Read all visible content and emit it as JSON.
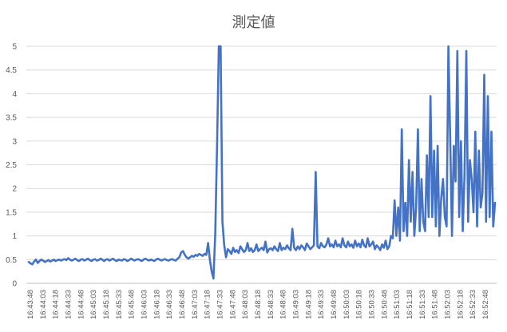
{
  "chart_data": {
    "type": "line",
    "title": "測定値",
    "xlabel": "",
    "ylabel": "",
    "ylim": [
      0,
      5
    ],
    "yticks": [
      "0",
      "0.5",
      "1",
      "1.5",
      "2",
      "2.5",
      "3",
      "3.5",
      "4",
      "4.5",
      "5"
    ],
    "xtick_labels": [
      "16:43:48",
      "16:44:03",
      "16:44:18",
      "16:44:33",
      "16:44:48",
      "16:45:03",
      "16:45:18",
      "16:45:33",
      "16:45:48",
      "16:46:03",
      "16:46:18",
      "16:46:33",
      "16:46:48",
      "16:47:03",
      "16:47:18",
      "16:47:33",
      "16:47:48",
      "16:48:03",
      "16:48:18",
      "16:48:33",
      "16:48:48",
      "16:49:03",
      "16:49:18",
      "16:49:33",
      "16:49:48",
      "16:50:03",
      "16:50:18",
      "16:50:33",
      "16:50:48",
      "16:51:03",
      "16:51:18",
      "16:51:33",
      "16:51:48",
      "16:52:03",
      "16:52:18",
      "16:52:33",
      "16:52:48"
    ],
    "grid": true,
    "legend": "none",
    "color": "#4472C4",
    "series": [
      {
        "values": [
          0.45,
          0.42,
          0.4,
          0.46,
          0.5,
          0.43,
          0.47,
          0.5,
          0.48,
          0.45,
          0.47,
          0.49,
          0.46,
          0.48,
          0.5,
          0.47,
          0.49,
          0.5,
          0.48,
          0.5,
          0.51,
          0.49,
          0.53,
          0.5,
          0.48,
          0.5,
          0.52,
          0.49,
          0.47,
          0.5,
          0.51,
          0.48,
          0.5,
          0.52,
          0.49,
          0.47,
          0.5,
          0.51,
          0.48,
          0.49,
          0.52,
          0.5,
          0.47,
          0.5,
          0.51,
          0.48,
          0.5,
          0.52,
          0.49,
          0.47,
          0.5,
          0.49,
          0.48,
          0.51,
          0.5,
          0.47,
          0.49,
          0.52,
          0.5,
          0.48,
          0.5,
          0.51,
          0.49,
          0.47,
          0.5,
          0.52,
          0.5,
          0.48,
          0.5,
          0.49,
          0.47,
          0.5,
          0.52,
          0.5,
          0.48,
          0.5,
          0.51,
          0.49,
          0.48,
          0.5,
          0.51,
          0.49,
          0.48,
          0.52,
          0.55,
          0.65,
          0.68,
          0.6,
          0.55,
          0.52,
          0.55,
          0.58,
          0.56,
          0.6,
          0.58,
          0.62,
          0.6,
          0.58,
          0.62,
          0.6,
          0.85,
          0.5,
          0.25,
          0.1,
          1.05,
          2.9,
          5.0,
          5.0,
          1.3,
          0.8,
          0.55,
          0.72,
          0.68,
          0.62,
          0.75,
          0.66,
          0.7,
          0.64,
          0.78,
          0.72,
          0.66,
          0.7,
          0.85,
          0.68,
          0.74,
          0.66,
          0.7,
          0.82,
          0.68,
          0.72,
          0.75,
          0.7,
          0.88,
          0.65,
          0.72,
          0.74,
          0.7,
          0.78,
          0.72,
          0.68,
          0.85,
          0.7,
          0.75,
          0.72,
          0.8,
          0.74,
          0.7,
          1.15,
          0.75,
          0.7,
          0.78,
          0.72,
          0.8,
          0.76,
          0.7,
          0.84,
          0.78,
          0.72,
          0.76,
          0.8,
          2.35,
          0.78,
          0.74,
          0.85,
          0.78,
          0.76,
          0.82,
          0.95,
          0.78,
          0.82,
          0.76,
          0.9,
          0.78,
          0.82,
          0.76,
          0.95,
          0.8,
          0.76,
          0.88,
          0.78,
          0.82,
          0.75,
          0.9,
          0.78,
          0.84,
          0.76,
          0.92,
          0.8,
          0.76,
          0.95,
          0.78,
          0.82,
          0.88,
          0.72,
          0.8,
          0.76,
          0.7,
          0.82,
          0.75,
          0.9,
          0.72,
          0.78,
          1.0,
          0.95,
          1.75,
          1.0,
          1.6,
          0.9,
          3.25,
          1.1,
          1.7,
          1.0,
          2.6,
          1.3,
          2.35,
          1.0,
          1.6,
          3.25,
          1.1,
          2.2,
          1.3,
          1.1,
          2.7,
          1.4,
          3.95,
          1.4,
          2.8,
          1.2,
          2.9,
          1.0,
          1.8,
          2.2,
          1.4,
          1.2,
          5.0,
          3.05,
          1.0,
          2.9,
          2.15,
          4.9,
          1.4,
          3.0,
          1.1,
          2.3,
          4.9,
          1.3,
          2.6,
          2.2,
          1.5,
          3.2,
          1.2,
          2.8,
          1.6,
          1.9,
          4.4,
          1.3,
          3.95,
          1.4,
          3.2,
          1.2,
          1.7
        ]
      }
    ]
  }
}
